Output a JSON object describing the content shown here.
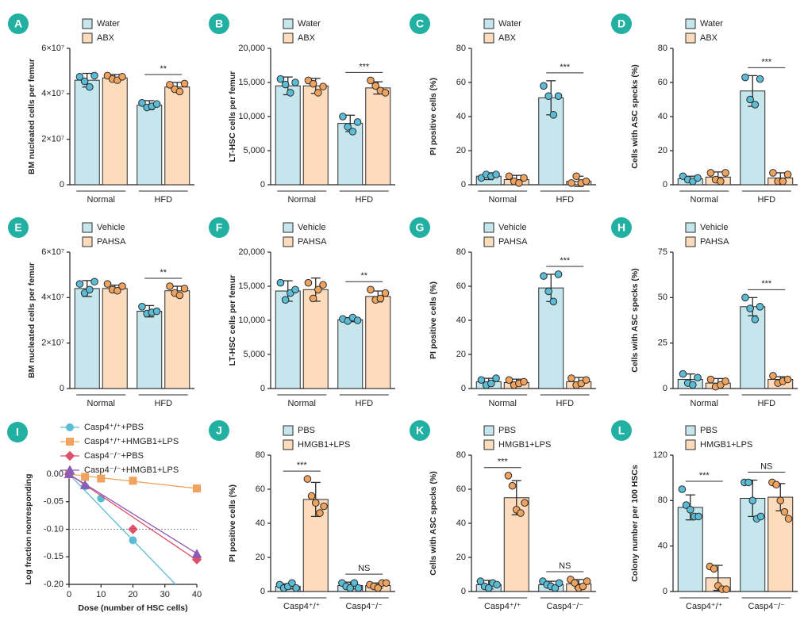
{
  "chart_data": [
    {
      "type": "bar",
      "panel_label": "A",
      "ylabel": "BM nucleated cells per femur",
      "categories": [
        "Normal",
        "HFD"
      ],
      "ylim": [
        0,
        60000000
      ],
      "yticks": [
        0,
        {
          "value": 20000000,
          "label": "2×10⁷"
        },
        {
          "value": 40000000,
          "label": "4×10⁷"
        },
        {
          "value": 60000000,
          "label": "6×10⁷"
        }
      ],
      "significance": [
        null,
        "**"
      ],
      "series": [
        {
          "name": "Water",
          "color": "#c6e6ee",
          "point_color": "#5bbcd6",
          "values": [
            46000000,
            35000000
          ],
          "errors": [
            3000000,
            2000000
          ],
          "points": [
            [
              47500000,
              45500000,
              43000000,
              48000000
            ],
            [
              36000000,
              34000000,
              34500000,
              35500000
            ]
          ]
        },
        {
          "name": "ABX",
          "color": "#fcdcbc",
          "point_color": "#f0a35f",
          "values": [
            47000000,
            43000000
          ],
          "errors": [
            1500000,
            2000000
          ],
          "points": [
            [
              48000000,
              46500000,
              46000000,
              47500000
            ],
            [
              44000000,
              42000000,
              41000000,
              44500000
            ]
          ]
        }
      ]
    },
    {
      "type": "bar",
      "panel_label": "B",
      "ylabel": "LT-HSC cells per femur",
      "categories": [
        "Normal",
        "HFD"
      ],
      "ylim": [
        0,
        20000
      ],
      "yticks": [
        0,
        {
          "value": 5000,
          "label": "5,000"
        },
        {
          "value": 10000,
          "label": "10,000"
        },
        {
          "value": 15000,
          "label": "15,000"
        },
        {
          "value": 20000,
          "label": "20,000"
        }
      ],
      "significance": [
        null,
        "***"
      ],
      "series": [
        {
          "name": "Water",
          "color": "#c6e6ee",
          "point_color": "#5bbcd6",
          "values": [
            14500,
            9000
          ],
          "errors": [
            1300,
            1200
          ],
          "points": [
            [
              15500,
              14700,
              13500,
              15000
            ],
            [
              10000,
              8500,
              7800,
              9200
            ]
          ]
        },
        {
          "name": "ABX",
          "color": "#fcdcbc",
          "point_color": "#f0a35f",
          "values": [
            14500,
            14200
          ],
          "errors": [
            1100,
            900
          ],
          "points": [
            [
              15300,
              14800,
              13500,
              14400
            ],
            [
              15300,
              14500,
              13800,
              13500
            ]
          ]
        }
      ]
    },
    {
      "type": "bar",
      "panel_label": "C",
      "ylabel": "PI positive cells (%)",
      "categories": [
        "Normal",
        "HFD"
      ],
      "ylim": [
        0,
        80
      ],
      "yticks": [
        0,
        20,
        40,
        60,
        80
      ],
      "significance": [
        null,
        "***"
      ],
      "series": [
        {
          "name": "Water",
          "color": "#c6e6ee",
          "point_color": "#5bbcd6",
          "values": [
            5,
            51
          ],
          "errors": [
            2,
            10
          ],
          "points": [
            [
              4,
              6,
              5,
              6
            ],
            [
              58,
              52,
              41,
              52
            ]
          ]
        },
        {
          "name": "ABX",
          "color": "#fcdcbc",
          "point_color": "#f0a35f",
          "values": [
            3,
            2
          ],
          "errors": [
            2.5,
            3
          ],
          "points": [
            [
              5,
              2,
              1,
              4
            ],
            [
              1,
              5,
              1,
              2
            ]
          ]
        }
      ]
    },
    {
      "type": "bar",
      "panel_label": "D",
      "ylabel": "Cells with ASC specks (%)",
      "categories": [
        "Normal",
        "HFD"
      ],
      "ylim": [
        0,
        80
      ],
      "yticks": [
        0,
        20,
        40,
        60,
        80
      ],
      "significance": [
        null,
        "***"
      ],
      "series": [
        {
          "name": "Water",
          "color": "#c6e6ee",
          "point_color": "#5bbcd6",
          "values": [
            3.5,
            55
          ],
          "errors": [
            1.5,
            9
          ],
          "points": [
            [
              5,
              3,
              2,
              4
            ],
            [
              63,
              50,
              47,
              62
            ]
          ]
        },
        {
          "name": "ABX",
          "color": "#fcdcbc",
          "point_color": "#f0a35f",
          "values": [
            4.5,
            4
          ],
          "errors": [
            3,
            3
          ],
          "points": [
            [
              7,
              3,
              2,
              7
            ],
            [
              7,
              2,
              2,
              6
            ]
          ]
        }
      ]
    },
    {
      "type": "bar",
      "panel_label": "E",
      "ylabel": "BM nucleated cells per femur",
      "categories": [
        "Normal",
        "HFD"
      ],
      "ylim": [
        0,
        60000000
      ],
      "yticks": [
        0,
        {
          "value": 20000000,
          "label": "2×10⁷"
        },
        {
          "value": 40000000,
          "label": "4×10⁷"
        },
        {
          "value": 60000000,
          "label": "6×10⁷"
        }
      ],
      "significance": [
        null,
        "**"
      ],
      "series": [
        {
          "name": "Vehicle",
          "color": "#c6e6ee",
          "point_color": "#5bbcd6",
          "values": [
            44000000,
            34000000
          ],
          "errors": [
            3500000,
            2500000
          ],
          "points": [
            [
              46000000,
              42000000,
              43500000,
              47000000
            ],
            [
              36000000,
              33000000,
              33500000,
              34000000
            ]
          ]
        },
        {
          "name": "PAHSA",
          "color": "#fcdcbc",
          "point_color": "#f0a35f",
          "values": [
            44000000,
            43000000
          ],
          "errors": [
            1500000,
            2000000
          ],
          "points": [
            [
              46000000,
              43500000,
              43000000,
              45000000
            ],
            [
              45000000,
              42000000,
              41000000,
              44000000
            ]
          ]
        }
      ]
    },
    {
      "type": "bar",
      "panel_label": "F",
      "ylabel": "LT-HSC cells per femur",
      "categories": [
        "Normal",
        "HFD"
      ],
      "ylim": [
        0,
        20000
      ],
      "yticks": [
        0,
        {
          "value": 5000,
          "label": "5,000"
        },
        {
          "value": 10000,
          "label": "10,000"
        },
        {
          "value": 15000,
          "label": "15,000"
        },
        {
          "value": 20000,
          "label": "20,000"
        }
      ],
      "significance": [
        null,
        "**"
      ],
      "series": [
        {
          "name": "Vehicle",
          "color": "#c6e6ee",
          "point_color": "#5bbcd6",
          "values": [
            14300,
            10100
          ],
          "errors": [
            1500,
            300
          ],
          "points": [
            [
              15500,
              13000,
              14000,
              14500
            ],
            [
              10200,
              9900,
              10400,
              10000
            ]
          ]
        },
        {
          "name": "PAHSA",
          "color": "#fcdcbc",
          "point_color": "#f0a35f",
          "values": [
            14500,
            13500
          ],
          "errors": [
            1700,
            800
          ],
          "points": [
            [
              15500,
              13200,
              14500,
              15200
            ],
            [
              14500,
              13000,
              13200,
              14000
            ]
          ]
        }
      ]
    },
    {
      "type": "bar",
      "panel_label": "G",
      "ylabel": "PI positive cells (%)",
      "categories": [
        "Normal",
        "HFD"
      ],
      "ylim": [
        0,
        80
      ],
      "yticks": [
        0,
        20,
        40,
        60,
        80
      ],
      "significance": [
        null,
        "***"
      ],
      "series": [
        {
          "name": "Vehicle",
          "color": "#c6e6ee",
          "point_color": "#5bbcd6",
          "values": [
            4,
            59
          ],
          "errors": [
            2,
            8
          ],
          "points": [
            [
              5,
              2,
              3,
              6
            ],
            [
              66,
              57,
              51,
              67
            ]
          ]
        },
        {
          "name": "PAHSA",
          "color": "#fcdcbc",
          "point_color": "#f0a35f",
          "values": [
            3.5,
            4
          ],
          "errors": [
            2,
            2.5
          ],
          "points": [
            [
              5,
              2,
              3,
              4
            ],
            [
              6,
              2,
              3,
              5
            ]
          ]
        }
      ]
    },
    {
      "type": "bar",
      "panel_label": "H",
      "ylabel": "Cells with ASC specks (%)",
      "categories": [
        "Normal",
        "HFD"
      ],
      "ylim": [
        0,
        75
      ],
      "yticks": [
        0,
        25,
        50,
        75
      ],
      "significance": [
        null,
        "***"
      ],
      "series": [
        {
          "name": "Vehicle",
          "color": "#c6e6ee",
          "point_color": "#5bbcd6",
          "values": [
            5,
            45
          ],
          "errors": [
            3,
            5
          ],
          "points": [
            [
              8,
              3,
              2,
              6
            ],
            [
              50,
              44,
              38,
              45
            ]
          ]
        },
        {
          "name": "PAHSA",
          "color": "#fcdcbc",
          "point_color": "#f0a35f",
          "values": [
            3,
            5
          ],
          "errors": [
            2.5,
            1.5
          ],
          "points": [
            [
              5,
              1,
              2,
              4
            ],
            [
              7,
              3,
              4,
              5
            ]
          ]
        }
      ]
    },
    {
      "type": "line",
      "panel_label": "I",
      "xlabel": "Dose (number of HSC cells)",
      "ylabel": "Log fraction nonresponding",
      "xlim": [
        0,
        40
      ],
      "xticks": [
        0,
        10,
        20,
        30,
        40
      ],
      "ylim": [
        -0.2,
        0
      ],
      "yticks": [
        {
          "value": 0,
          "label": "0.00"
        },
        {
          "value": -0.05,
          "label": "-0.05"
        },
        {
          "value": -0.1,
          "label": "-0.10"
        },
        {
          "value": -0.15,
          "label": "-0.15"
        },
        {
          "value": -0.2,
          "label": "-0.20"
        }
      ],
      "reference_line": -0.1,
      "series": [
        {
          "name": "Casp4⁺/⁺+PBS",
          "color": "#5bbcd6",
          "marker": "circle",
          "x": [
            0,
            5,
            10,
            20
          ],
          "values": [
            0,
            -0.022,
            -0.044,
            -0.12
          ],
          "fit_slope": -0.006
        },
        {
          "name": "Casp4⁺/⁺+HMGB1+LPS",
          "color": "#f0a35f",
          "marker": "square",
          "x": [
            0,
            5,
            10,
            20,
            40
          ],
          "values": [
            0,
            -0.005,
            -0.008,
            -0.012,
            -0.026
          ],
          "fit_slope": -0.00065
        },
        {
          "name": "Casp4⁻/⁻+PBS",
          "color": "#e0506a",
          "marker": "diamond",
          "x": [
            0,
            20,
            40
          ],
          "values": [
            0,
            -0.1,
            -0.155
          ],
          "fit_slope": -0.0039
        },
        {
          "name": "Casp4⁻/⁻+HMGB1+LPS",
          "color": "#8e5bb5",
          "marker": "triangle",
          "x": [
            0,
            5,
            40
          ],
          "values": [
            0,
            -0.02,
            -0.145
          ],
          "fit_slope": -0.0036
        }
      ]
    },
    {
      "type": "bar",
      "panel_label": "J",
      "ylabel": "PI positive cells (%)",
      "categories": [
        "Casp4⁺/⁺",
        "Casp4⁻/⁻"
      ],
      "ylim": [
        0,
        80
      ],
      "yticks": [
        0,
        20,
        40,
        60,
        80
      ],
      "significance": [
        "***",
        "NS"
      ],
      "series": [
        {
          "name": "PBS",
          "color": "#c6e6ee",
          "point_color": "#5bbcd6",
          "values": [
            3,
            3.5
          ],
          "errors": [
            1.5,
            2
          ],
          "points": [
            [
              4,
              2,
              3,
              5,
              2
            ],
            [
              5,
              3,
              2,
              5,
              2
            ]
          ]
        },
        {
          "name": "HMGB1+LPS",
          "color": "#fcdcbc",
          "point_color": "#f0a35f",
          "values": [
            54,
            3.5
          ],
          "errors": [
            10,
            1.5
          ],
          "points": [
            [
              66,
              56,
              52,
              46,
              50
            ],
            [
              4,
              3,
              2,
              5,
              5
            ]
          ]
        }
      ]
    },
    {
      "type": "bar",
      "panel_label": "K",
      "ylabel": "Cells with ASC specks (%)",
      "categories": [
        "Casp4⁺/⁺",
        "Casp4⁻/⁻"
      ],
      "ylim": [
        0,
        80
      ],
      "yticks": [
        0,
        20,
        40,
        60,
        80
      ],
      "significance": [
        "***",
        "NS"
      ],
      "series": [
        {
          "name": "PBS",
          "color": "#c6e6ee",
          "point_color": "#5bbcd6",
          "values": [
            4,
            4
          ],
          "errors": [
            2.5,
            2
          ],
          "points": [
            [
              6,
              3,
              2,
              5,
              4
            ],
            [
              6,
              4,
              3,
              2,
              5
            ]
          ]
        },
        {
          "name": "HMGB1+LPS",
          "color": "#fcdcbc",
          "point_color": "#f0a35f",
          "values": [
            55,
            4.5
          ],
          "errors": [
            10,
            2.5
          ],
          "points": [
            [
              68,
              62,
              48,
              46,
              52
            ],
            [
              7,
              5,
              2,
              3,
              6
            ]
          ]
        }
      ]
    },
    {
      "type": "bar",
      "panel_label": "L",
      "ylabel": "Colony number per 100 HSCs",
      "categories": [
        "Casp4⁺/⁺",
        "Casp4⁻/⁻"
      ],
      "ylim": [
        0,
        120
      ],
      "yticks": [
        0,
        40,
        80,
        120
      ],
      "significance": [
        "***",
        "NS"
      ],
      "series": [
        {
          "name": "PBS",
          "color": "#c6e6ee",
          "point_color": "#5bbcd6",
          "values": [
            74,
            82
          ],
          "errors": [
            11,
            16
          ],
          "points": [
            [
              90,
              76,
              72,
              66,
              66
            ],
            [
              96,
              96,
              80,
              64,
              66
            ]
          ]
        },
        {
          "name": "HMGB1+LPS",
          "color": "#fcdcbc",
          "point_color": "#f0a35f",
          "values": [
            12,
            83
          ],
          "errors": [
            11,
            12
          ],
          "points": [
            [
              22,
              20,
              5,
              2,
              2
            ],
            [
              96,
              94,
              80,
              70,
              64
            ]
          ]
        }
      ]
    }
  ]
}
